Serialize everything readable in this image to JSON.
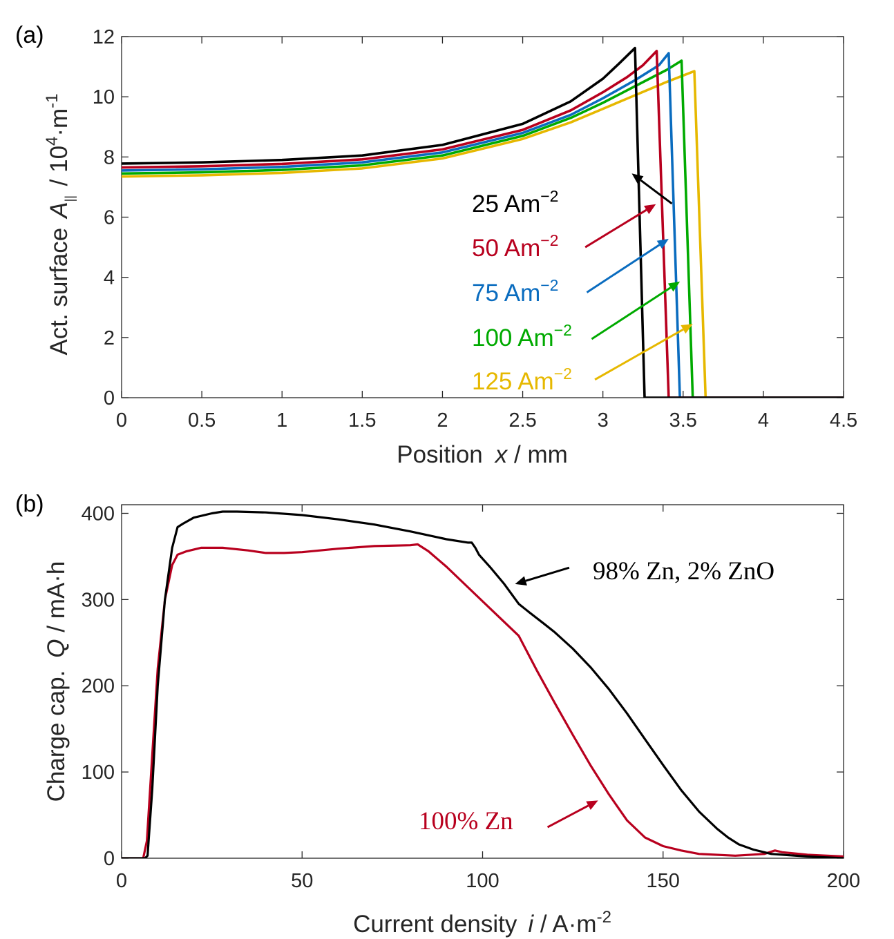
{
  "chart_data": [
    {
      "type": "line",
      "panel_label": "(a)",
      "xlabel_text": "Position",
      "xlabel_var": "x",
      "xlabel_unit": " / mm",
      "ylabel_text": "Act. surface",
      "ylabel_var": "A",
      "ylabel_sub": "||",
      "ylabel_unit_pre": " / 10",
      "ylabel_unit_exp": "4",
      "ylabel_unit_mid": "·m",
      "ylabel_unit_exp2": "-1",
      "xlim": [
        0,
        4.5
      ],
      "ylim": [
        0,
        12
      ],
      "xticks": [
        0,
        0.5,
        1,
        1.5,
        2,
        2.5,
        3,
        3.5,
        4,
        4.5
      ],
      "xtick_labels": [
        "0",
        "0.5",
        "1",
        "1.5",
        "2",
        "2.5",
        "3",
        "3.5",
        "4",
        "4.5"
      ],
      "yticks": [
        0,
        2,
        4,
        6,
        8,
        10,
        12
      ],
      "ytick_labels": [
        "0",
        "2",
        "4",
        "6",
        "8",
        "10",
        "12"
      ],
      "series": [
        {
          "name": "25 Am⁻²",
          "value": "25",
          "unit": "Am",
          "exp": "−2",
          "color": "#000000",
          "x": [
            0,
            0.5,
            1,
            1.5,
            2,
            2.5,
            2.8,
            3.0,
            3.1,
            3.2,
            3.26,
            4.5
          ],
          "y": [
            7.78,
            7.82,
            7.9,
            8.05,
            8.4,
            9.1,
            9.85,
            10.6,
            11.1,
            11.62,
            0,
            0
          ],
          "arrow": {
            "from": [
              3.43,
              6.45
            ],
            "to": [
              3.18,
              7.45
            ]
          }
        },
        {
          "name": "50 Am⁻²",
          "value": "50",
          "unit": "Am",
          "exp": "−2",
          "color": "#b8001e",
          "x": [
            0,
            0.5,
            1,
            1.5,
            2,
            2.5,
            2.8,
            3.0,
            3.15,
            3.25,
            3.335,
            3.41,
            4.5
          ],
          "y": [
            7.65,
            7.69,
            7.77,
            7.92,
            8.25,
            8.9,
            9.55,
            10.15,
            10.65,
            11.05,
            11.52,
            0,
            0
          ],
          "arrow": {
            "from": [
              2.89,
              5.0
            ],
            "to": [
              3.33,
              6.43
            ]
          }
        },
        {
          "name": "75 Am⁻²",
          "value": "75",
          "unit": "Am",
          "exp": "−2",
          "color": "#0a6cbf",
          "x": [
            0,
            0.5,
            1,
            1.5,
            2,
            2.5,
            2.8,
            3.0,
            3.2,
            3.35,
            3.41,
            3.48,
            4.5
          ],
          "y": [
            7.55,
            7.59,
            7.67,
            7.82,
            8.15,
            8.8,
            9.4,
            9.95,
            10.55,
            11.05,
            11.45,
            0,
            0
          ],
          "arrow": {
            "from": [
              2.9,
              3.5
            ],
            "to": [
              3.41,
              5.28
            ]
          }
        },
        {
          "name": "100 Am⁻²",
          "value": "100",
          "unit": "Am",
          "exp": "−2",
          "color": "#00aa00",
          "x": [
            0,
            0.5,
            1,
            1.5,
            2,
            2.5,
            2.8,
            3.0,
            3.2,
            3.4,
            3.49,
            3.56,
            4.5
          ],
          "y": [
            7.45,
            7.49,
            7.57,
            7.72,
            8.05,
            8.7,
            9.3,
            9.8,
            10.35,
            10.9,
            11.2,
            0,
            0
          ],
          "arrow": {
            "from": [
              2.93,
              1.95
            ],
            "to": [
              3.48,
              3.86
            ]
          }
        },
        {
          "name": "125 Am⁻²",
          "value": "125",
          "unit": "Am",
          "exp": "−2",
          "color": "#e6b800",
          "x": [
            0,
            0.5,
            1,
            1.5,
            2,
            2.5,
            2.8,
            3.0,
            3.2,
            3.4,
            3.57,
            3.64,
            4.5
          ],
          "y": [
            7.35,
            7.39,
            7.47,
            7.62,
            7.95,
            8.6,
            9.15,
            9.6,
            10.05,
            10.5,
            10.85,
            0,
            0
          ],
          "arrow": {
            "from": [
              2.95,
              0.6
            ],
            "to": [
              3.56,
              2.45
            ]
          }
        }
      ]
    },
    {
      "type": "line",
      "panel_label": "(b)",
      "xlabel_text": "Current density",
      "xlabel_var": "i",
      "xlabel_unit_pre": " / A·m",
      "xlabel_unit_exp": "-2",
      "ylabel_text": "Charge cap.",
      "ylabel_var": "Q",
      "ylabel_unit": " / mA·h",
      "xlim": [
        0,
        200
      ],
      "ylim": [
        0,
        410
      ],
      "xticks": [
        0,
        50,
        100,
        150,
        200
      ],
      "xtick_labels": [
        "0",
        "50",
        "100",
        "150",
        "200"
      ],
      "yticks": [
        0,
        100,
        200,
        300,
        400
      ],
      "ytick_labels": [
        "0",
        "100",
        "200",
        "300",
        "400"
      ],
      "series": [
        {
          "name": "98% Zn, 2% ZnO",
          "label_main": "98% Zn,",
          "label_rest": " 2% ZnO",
          "color": "#000000",
          "x": [
            0,
            6.5,
            7.2,
            8.5,
            10,
            12,
            14,
            15.5,
            17,
            20,
            25,
            28,
            32,
            40,
            50,
            60,
            70,
            80,
            90,
            96,
            97,
            98,
            99,
            102,
            106,
            110,
            113,
            117,
            120,
            125,
            130,
            135,
            140,
            145,
            150,
            155,
            160,
            165,
            168,
            171,
            175,
            180,
            190,
            200
          ],
          "y": [
            0,
            0,
            3,
            80,
            200,
            300,
            360,
            384,
            388,
            395,
            400,
            402,
            402,
            401,
            398,
            393,
            387,
            379,
            370,
            366,
            366,
            360,
            352,
            338,
            318,
            295,
            285,
            272,
            262,
            243,
            221,
            196,
            168,
            138,
            108,
            79,
            54,
            34,
            24,
            16,
            10,
            5,
            2,
            0
          ],
          "arrow": {
            "from": [
              124,
              337
            ],
            "to": [
              109,
              318
            ]
          }
        },
        {
          "name": "100% Zn",
          "label_main": "100% Zn",
          "color": "#b8001e",
          "x": [
            0,
            6,
            7,
            8.5,
            10,
            12,
            14,
            15.5,
            18,
            22,
            28,
            35,
            40,
            45,
            50,
            60,
            70,
            80,
            82,
            85,
            90,
            95,
            100,
            105,
            110,
            115,
            120,
            125,
            130,
            135,
            140,
            145,
            150,
            155,
            160,
            170,
            178,
            181,
            183,
            190,
            200
          ],
          "y": [
            0,
            0,
            20,
            120,
            220,
            300,
            340,
            352,
            356,
            360,
            360,
            357,
            354,
            354,
            355,
            359,
            362,
            363,
            364,
            356,
            338,
            318,
            298,
            278,
            258,
            218,
            180,
            143,
            107,
            74,
            44,
            24,
            14,
            9,
            5,
            3,
            5,
            9,
            7,
            4,
            2
          ],
          "arrow": {
            "from": [
              118,
              36
            ],
            "to": [
              132,
              67
            ]
          }
        }
      ]
    }
  ]
}
